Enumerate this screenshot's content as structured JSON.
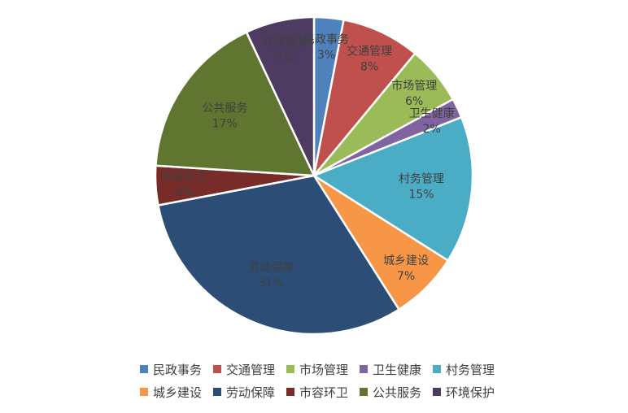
{
  "chart_data": {
    "type": "pie",
    "title": "",
    "legend_position": "bottom",
    "slices": [
      {
        "name": "民政事务",
        "value": 3,
        "label": "3%",
        "color": "#4F81BD"
      },
      {
        "name": "交通管理",
        "value": 8,
        "label": "8%",
        "color": "#C0504D"
      },
      {
        "name": "市场管理",
        "value": 6,
        "label": "6%",
        "color": "#9BBB59"
      },
      {
        "name": "卫生健康",
        "value": 2,
        "label": "2%",
        "color": "#8064A2"
      },
      {
        "name": "村务管理",
        "value": 15,
        "label": "15%",
        "color": "#4BACC6"
      },
      {
        "name": "城乡建设",
        "value": 7,
        "label": "7%",
        "color": "#F79646"
      },
      {
        "name": "劳动保障",
        "value": 31,
        "label": "31%",
        "color": "#2C4D75"
      },
      {
        "name": "市容环卫",
        "value": 4,
        "label": "4%",
        "color": "#772C2A"
      },
      {
        "name": "公共服务",
        "value": 17,
        "label": "17%",
        "color": "#5F7530"
      },
      {
        "name": "环境保护",
        "value": 7,
        "label": "7%",
        "color": "#4D3B62"
      }
    ]
  }
}
